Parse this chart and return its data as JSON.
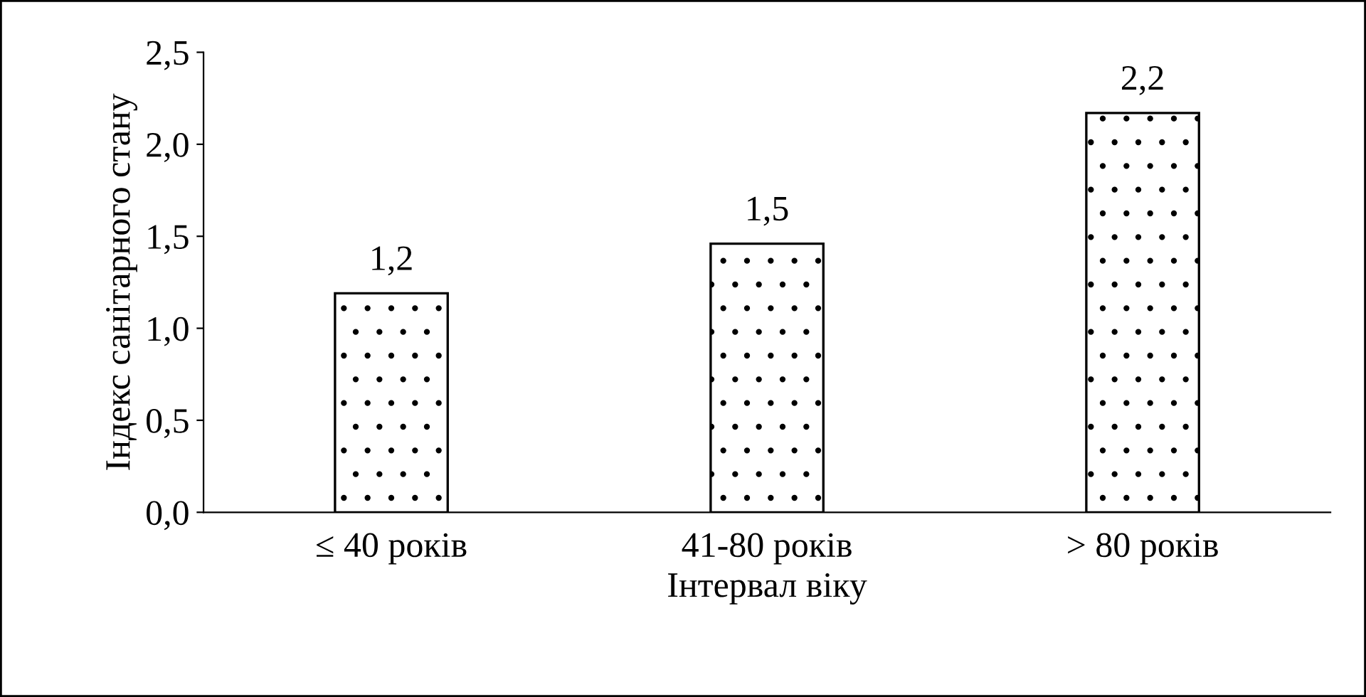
{
  "chart_data": {
    "type": "bar",
    "xlabel": "Інтервал віку",
    "ylabel": "Індекс санітарного стану",
    "categories": [
      "≤ 40 років",
      "41-80 років",
      "> 80 років"
    ],
    "values": [
      1.19,
      1.46,
      2.17
    ],
    "value_labels": [
      "1,2",
      "1,5",
      "2,2"
    ],
    "ylim": [
      0,
      2.5
    ],
    "yticks": [
      {
        "value": 0,
        "label": "0,0"
      },
      {
        "value": 0.5,
        "label": "0,5"
      },
      {
        "value": 1,
        "label": "1,0"
      },
      {
        "value": 1.5,
        "label": "1,5"
      },
      {
        "value": 2,
        "label": "2,0"
      },
      {
        "value": 2.5,
        "label": "2,5"
      }
    ],
    "grid": false,
    "legend": false
  }
}
